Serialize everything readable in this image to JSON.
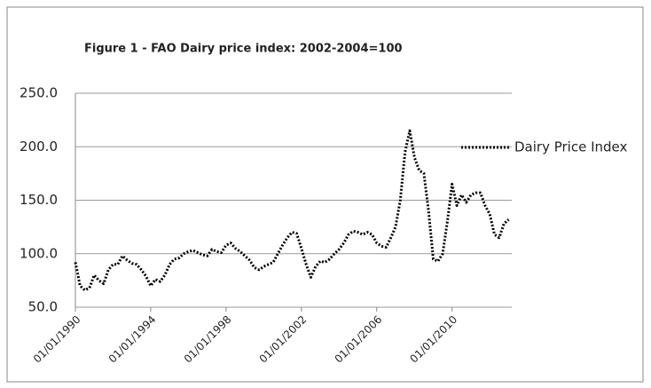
{
  "chart_data": {
    "type": "line",
    "title": "Figure 1 - FAO Dairy price index: 2002-2004=100",
    "x": [
      "01/01/1990",
      "01/04/1990",
      "01/07/1990",
      "01/10/1990",
      "01/01/1991",
      "01/04/1991",
      "01/07/1991",
      "01/10/1991",
      "01/01/1992",
      "01/04/1992",
      "01/07/1992",
      "01/10/1992",
      "01/01/1993",
      "01/04/1993",
      "01/07/1993",
      "01/10/1993",
      "01/01/1994",
      "01/04/1994",
      "01/07/1994",
      "01/10/1994",
      "01/01/1995",
      "01/04/1995",
      "01/07/1995",
      "01/10/1995",
      "01/01/1996",
      "01/04/1996",
      "01/07/1996",
      "01/10/1996",
      "01/01/1997",
      "01/04/1997",
      "01/07/1997",
      "01/10/1997",
      "01/01/1998",
      "01/04/1998",
      "01/07/1998",
      "01/10/1998",
      "01/01/1999",
      "01/04/1999",
      "01/07/1999",
      "01/10/1999",
      "01/01/2000",
      "01/04/2000",
      "01/07/2000",
      "01/10/2000",
      "01/01/2001",
      "01/04/2001",
      "01/07/2001",
      "01/10/2001",
      "01/01/2002",
      "01/04/2002",
      "01/07/2002",
      "01/10/2002",
      "01/01/2003",
      "01/04/2003",
      "01/07/2003",
      "01/10/2003",
      "01/01/2004",
      "01/04/2004",
      "01/07/2004",
      "01/10/2004",
      "01/01/2005",
      "01/04/2005",
      "01/07/2005",
      "01/10/2005",
      "01/01/2006",
      "01/04/2006",
      "01/07/2006",
      "01/10/2006",
      "01/01/2007",
      "01/04/2007",
      "01/07/2007",
      "01/10/2007",
      "01/01/2008",
      "01/04/2008",
      "01/07/2008",
      "01/10/2008",
      "01/01/2009",
      "01/04/2009",
      "01/07/2009",
      "01/10/2009",
      "01/01/2010",
      "01/04/2010",
      "01/07/2010",
      "01/10/2010",
      "01/01/2011",
      "01/04/2011",
      "01/07/2011",
      "01/10/2011",
      "01/01/2012",
      "01/04/2012",
      "01/07/2012",
      "01/10/2012",
      "01/01/2013"
    ],
    "series": [
      {
        "name": "Dairy Price Index",
        "color": "#000000",
        "values": [
          92,
          70,
          66,
          68,
          80,
          75,
          72,
          85,
          90,
          90,
          98,
          94,
          91,
          90,
          85,
          79,
          70,
          76,
          74,
          80,
          90,
          95,
          96,
          100,
          102,
          103,
          101,
          99,
          98,
          104,
          102,
          101,
          108,
          110,
          105,
          102,
          98,
          94,
          87,
          85,
          88,
          90,
          92,
          100,
          108,
          115,
          120,
          119,
          105,
          90,
          78,
          88,
          93,
          92,
          95,
          100,
          104,
          110,
          118,
          121,
          120,
          118,
          120,
          118,
          110,
          107,
          106,
          115,
          125,
          150,
          195,
          215,
          190,
          178,
          175,
          140,
          95,
          93,
          100,
          130,
          165,
          145,
          155,
          148,
          155,
          157,
          157,
          145,
          137,
          118,
          115,
          128,
          132
        ]
      }
    ],
    "xlim": [
      "01/01/1990",
      "01/03/2013"
    ],
    "xticks": [
      "01/01/1990",
      "01/01/1994",
      "01/01/1998",
      "01/01/2002",
      "01/01/2006",
      "01/01/2010"
    ],
    "ylim": [
      50,
      250
    ],
    "yticks": [
      {
        "value": 50,
        "label": "50.0"
      },
      {
        "value": 100,
        "label": "100.0"
      },
      {
        "value": 150,
        "label": "150.0"
      },
      {
        "value": 200,
        "label": "200.0"
      },
      {
        "value": 250,
        "label": "250.0"
      }
    ],
    "grid": true,
    "legend": "right"
  }
}
